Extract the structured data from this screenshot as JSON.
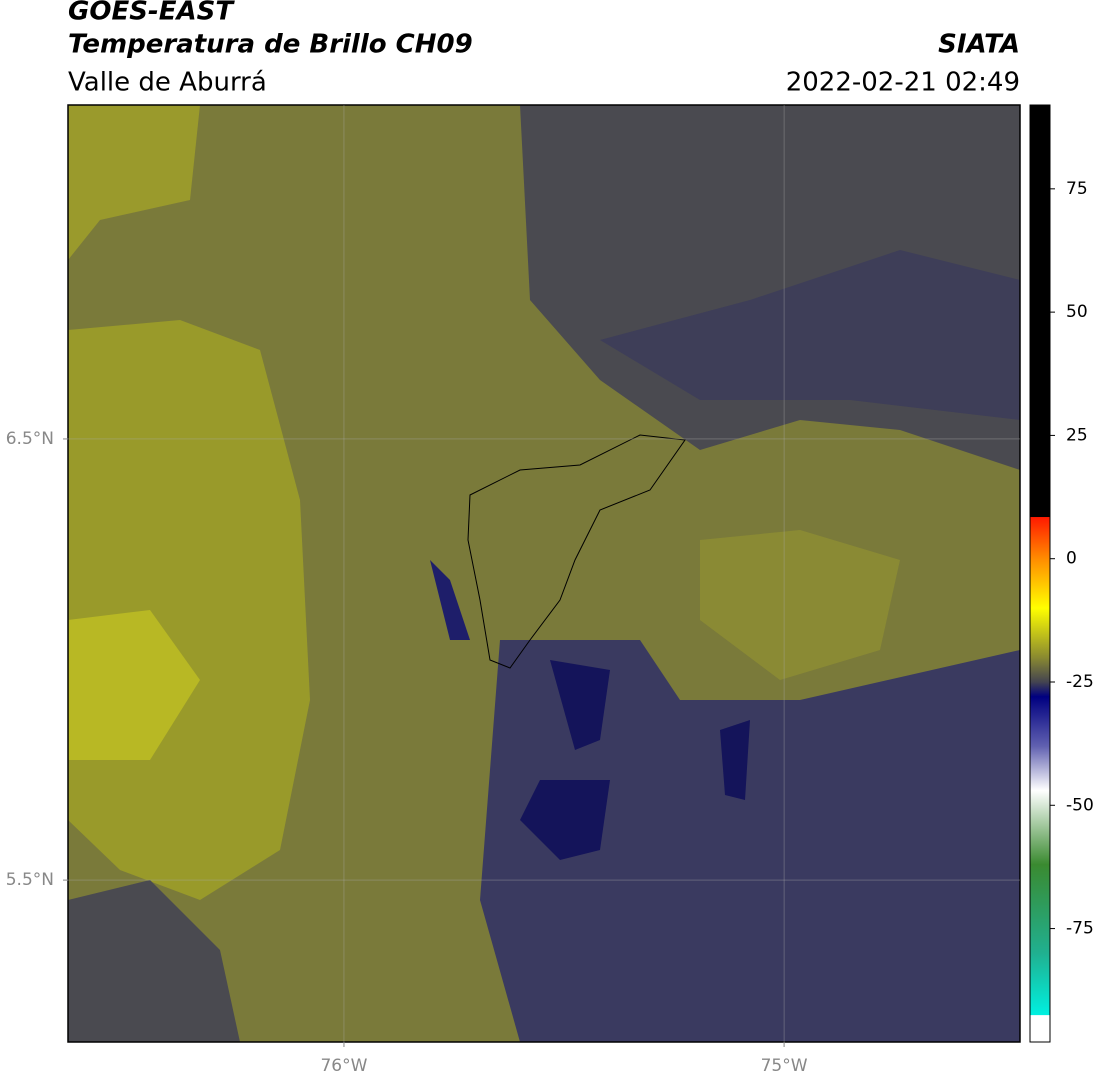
{
  "header": {
    "title": "GOES-EAST",
    "subtitle": "Temperatura de Brillo CH09",
    "region": "Valle de Aburrá",
    "source": "SIATA",
    "datetime": "2022-02-21 02:49"
  },
  "map": {
    "xlim": [
      -76.627,
      -74.464
    ],
    "ylim": [
      5.133,
      7.257
    ],
    "xticks": [
      {
        "value": -76,
        "label": "76°W"
      },
      {
        "value": -75,
        "label": "75°W"
      }
    ],
    "yticks": [
      {
        "value": 6.5,
        "label": "6.5°N"
      },
      {
        "value": 5.5,
        "label": "5.5°N"
      }
    ],
    "grid": true
  },
  "colorbar": {
    "lim": [
      -98,
      92
    ],
    "ticks": [
      75,
      50,
      25,
      0,
      -25,
      -50,
      -75
    ],
    "colormap": [
      {
        "value": 92,
        "color": "#000000"
      },
      {
        "value": 8.5,
        "color": "#000000"
      },
      {
        "value": 8.4,
        "color": "#ff1a00"
      },
      {
        "value": 0,
        "color": "#ff8c00"
      },
      {
        "value": -10,
        "color": "#ffff00"
      },
      {
        "value": -20,
        "color": "#8a8a30"
      },
      {
        "value": -25,
        "color": "#444450"
      },
      {
        "value": -28,
        "color": "#000080"
      },
      {
        "value": -38,
        "color": "#6060b0"
      },
      {
        "value": -47,
        "color": "#ffffff"
      },
      {
        "value": -62,
        "color": "#3a8a30"
      },
      {
        "value": -80,
        "color": "#20b090"
      },
      {
        "value": -92.5,
        "color": "#00f0e0"
      },
      {
        "value": -92.6,
        "color": "#ffffff"
      },
      {
        "value": -98,
        "color": "#ffffff"
      }
    ]
  }
}
